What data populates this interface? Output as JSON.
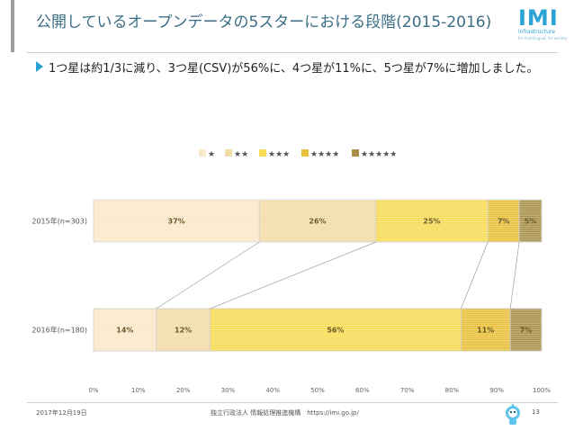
{
  "slide": {
    "title": "公開しているオープンデータの5スターにおける段階(2015-2016)",
    "bullet": "1つ星は約1/3に減り、3つ星(CSV)が56%に、4つ星が11%に、5つ星が7%に増加しました。"
  },
  "logo": {
    "main": "IMI",
    "sub": "infrastructure",
    "tiny": "for multilingual, for society"
  },
  "footer": {
    "date": "2017年12月19日",
    "org": "独立行政法人 情報処理推進機構　https://imi.go.jp/",
    "page": "13"
  },
  "chart_data": {
    "type": "bar",
    "orientation": "horizontal",
    "stacked": "percent",
    "legend_position": "top",
    "categories": [
      "2015年(n=303)",
      "2016年(n=180)"
    ],
    "series": [
      {
        "name": "★",
        "values": [
          37,
          14
        ],
        "labels": [
          "37%",
          "14%"
        ],
        "color": "#fae8c8"
      },
      {
        "name": "★★",
        "values": [
          26,
          12
        ],
        "labels": [
          "26%",
          "12%"
        ],
        "color": "#f3dba7"
      },
      {
        "name": "★★★",
        "values": [
          25,
          56
        ],
        "labels": [
          "25%",
          "56%"
        ],
        "color": "#f8db54"
      },
      {
        "name": "★★★★",
        "values": [
          7,
          11
        ],
        "labels": [
          "7%",
          "11%"
        ],
        "color": "#e8c03a"
      },
      {
        "name": "★★★★★",
        "values": [
          5,
          7
        ],
        "labels": [
          "5%",
          "7%"
        ],
        "color": "#a9904a"
      }
    ],
    "x_ticks": [
      "0%",
      "10%",
      "20%",
      "30%",
      "40%",
      "50%",
      "60%",
      "70%",
      "80%",
      "90%",
      "100%"
    ],
    "xlim": [
      0,
      100
    ],
    "connector_lines": true
  }
}
